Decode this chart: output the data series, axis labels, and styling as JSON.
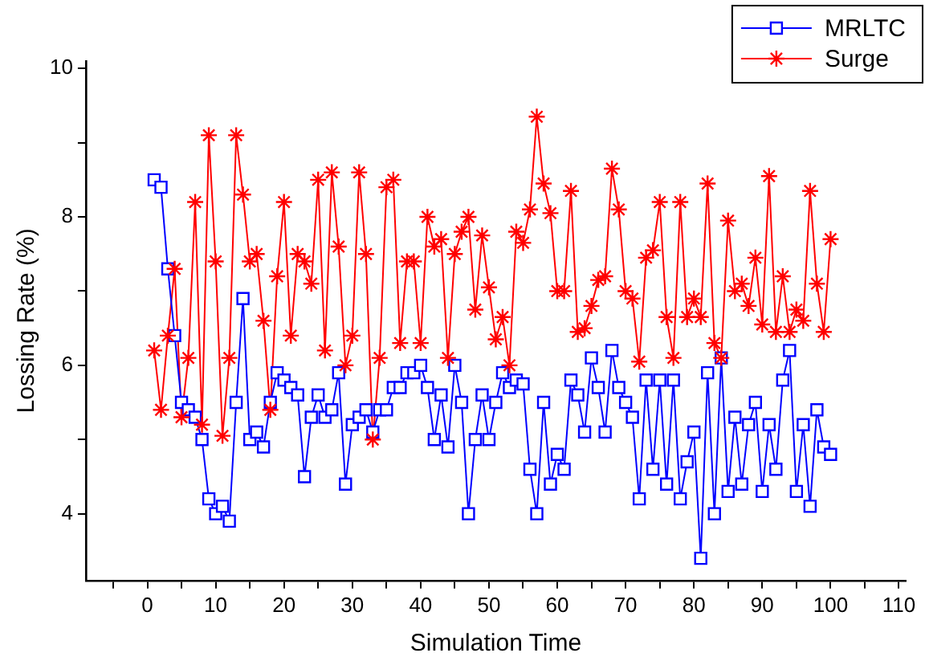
{
  "chart_data": {
    "type": "line",
    "xlabel": "Simulation Time",
    "ylabel": "Lossing Rate (%)",
    "x": [
      1,
      2,
      3,
      4,
      5,
      6,
      7,
      8,
      9,
      10,
      11,
      12,
      13,
      14,
      15,
      16,
      17,
      18,
      19,
      20,
      21,
      22,
      23,
      24,
      25,
      26,
      27,
      28,
      29,
      30,
      31,
      32,
      33,
      34,
      35,
      36,
      37,
      38,
      39,
      40,
      41,
      42,
      43,
      44,
      45,
      46,
      47,
      48,
      49,
      50,
      51,
      52,
      53,
      54,
      55,
      56,
      57,
      58,
      59,
      60,
      61,
      62,
      63,
      64,
      65,
      66,
      67,
      68,
      69,
      70,
      71,
      72,
      73,
      74,
      75,
      76,
      77,
      78,
      79,
      80,
      81,
      82,
      83,
      84,
      85,
      86,
      87,
      88,
      89,
      90,
      91,
      92,
      93,
      94,
      95,
      96,
      97,
      98,
      99,
      100
    ],
    "series": [
      {
        "name": "MRLTC",
        "color": "#0000ff",
        "marker": "square",
        "values": [
          8.5,
          8.4,
          7.3,
          6.4,
          5.5,
          5.4,
          5.3,
          5.0,
          4.2,
          4.0,
          4.1,
          3.9,
          5.5,
          6.9,
          5.0,
          5.1,
          4.9,
          5.5,
          5.9,
          5.8,
          5.7,
          5.6,
          4.5,
          5.3,
          5.6,
          5.3,
          5.4,
          5.9,
          4.4,
          5.2,
          5.3,
          5.4,
          5.1,
          5.4,
          5.4,
          5.7,
          5.7,
          5.9,
          5.9,
          6.0,
          5.7,
          5.0,
          5.6,
          4.9,
          6.0,
          5.5,
          4.0,
          5.0,
          5.6,
          5.0,
          5.5,
          5.9,
          5.7,
          5.8,
          5.75,
          4.6,
          4.0,
          5.5,
          4.4,
          4.8,
          4.6,
          5.8,
          5.6,
          5.1,
          6.1,
          5.7,
          5.1,
          6.2,
          5.7,
          5.5,
          5.3,
          4.2,
          5.8,
          4.6,
          5.8,
          4.4,
          5.8,
          4.2,
          4.7,
          5.1,
          3.4,
          5.9,
          4.0,
          6.1,
          4.3,
          5.3,
          4.4,
          5.2,
          5.5,
          4.3,
          5.2,
          4.6,
          5.8,
          6.2,
          4.3,
          5.2,
          4.1,
          5.4,
          4.9,
          4.8
        ]
      },
      {
        "name": "Surge",
        "color": "#ff0000",
        "marker": "cross",
        "values": [
          6.2,
          5.4,
          6.4,
          7.3,
          5.3,
          6.1,
          8.2,
          5.2,
          9.1,
          7.4,
          5.05,
          6.1,
          9.1,
          8.3,
          7.4,
          7.5,
          6.6,
          5.4,
          7.2,
          8.2,
          6.4,
          7.5,
          7.4,
          7.1,
          8.5,
          6.2,
          8.6,
          7.6,
          6.0,
          6.4,
          8.6,
          7.5,
          5.0,
          6.1,
          8.4,
          8.5,
          6.3,
          7.4,
          7.4,
          6.3,
          8.0,
          7.6,
          7.7,
          6.1,
          7.5,
          7.8,
          8.0,
          6.75,
          7.75,
          7.05,
          6.35,
          6.65,
          6.0,
          7.8,
          7.65,
          8.1,
          9.35,
          8.45,
          8.05,
          7.0,
          7.0,
          8.35,
          6.45,
          6.5,
          6.8,
          7.15,
          7.2,
          8.65,
          8.1,
          7.0,
          6.9,
          6.05,
          7.45,
          7.55,
          8.2,
          6.65,
          6.1,
          8.2,
          6.65,
          6.9,
          6.65,
          8.45,
          6.3,
          6.1,
          7.95,
          7.0,
          7.1,
          6.8,
          7.45,
          6.55,
          8.55,
          6.45,
          7.2,
          6.45,
          6.75,
          6.6,
          8.35,
          7.1,
          6.45,
          7.7
        ]
      }
    ],
    "xlim": [
      -9,
      111
    ],
    "ylim": [
      3.1,
      10.1
    ],
    "xticks": [
      {
        "value": -5,
        "label": null
      },
      0,
      {
        "value": 5,
        "label": null
      },
      10,
      {
        "value": 15,
        "label": null
      },
      20,
      {
        "value": 25,
        "label": null
      },
      30,
      {
        "value": 35,
        "label": null
      },
      40,
      {
        "value": 45,
        "label": null
      },
      50,
      {
        "value": 55,
        "label": null
      },
      60,
      {
        "value": 65,
        "label": null
      },
      70,
      {
        "value": 75,
        "label": null
      },
      80,
      {
        "value": 85,
        "label": null
      },
      90,
      {
        "value": 95,
        "label": null
      },
      100,
      {
        "value": 105,
        "label": null
      },
      110
    ],
    "yticks": [
      4,
      {
        "value": 5,
        "label": null
      },
      6,
      {
        "value": 7,
        "label": null
      },
      8,
      {
        "value": 9,
        "label": null
      },
      10
    ],
    "grid": false,
    "legend": "top right",
    "line_style": "solid"
  }
}
